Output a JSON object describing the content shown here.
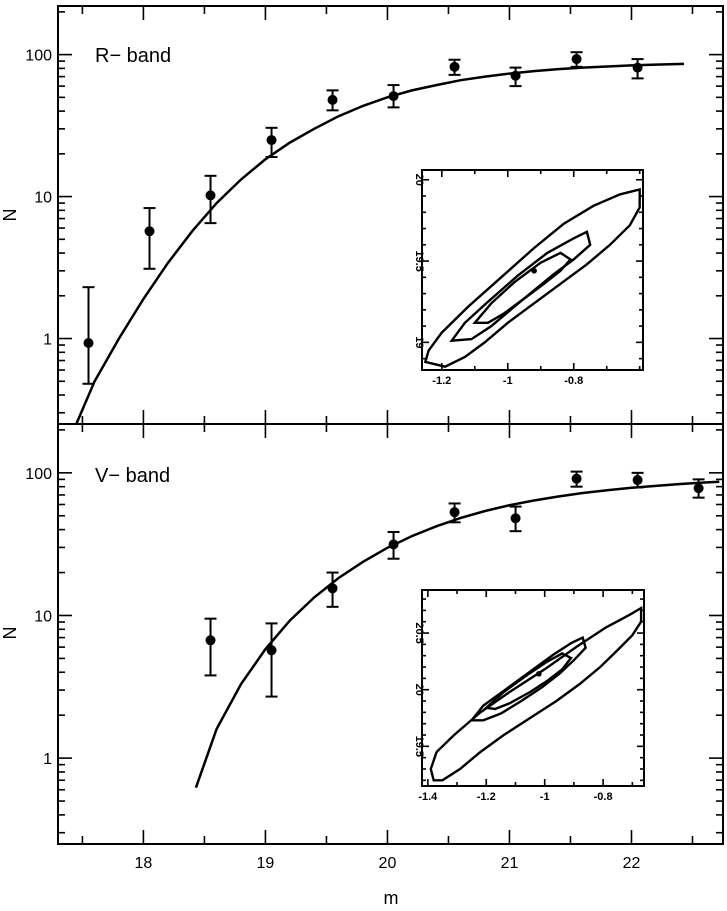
{
  "chart_data": [
    {
      "type": "scatter",
      "panel": "top",
      "annotation": "R− band",
      "xlabel": "m",
      "ylabel": "N",
      "xlim": [
        17.3,
        22.75
      ],
      "ylim": [
        0.25,
        220
      ],
      "yscale": "log",
      "yticks": [
        1,
        10,
        100
      ],
      "ytick_labels": [
        "1",
        "10",
        "100"
      ],
      "xticks": [
        18,
        19,
        20,
        21,
        22
      ],
      "xtick_labels": [
        "18",
        "19",
        "20",
        "21",
        "22"
      ],
      "points": [
        {
          "x": 17.55,
          "y": 0.93,
          "lo": 0.48,
          "hi": 2.3
        },
        {
          "x": 18.05,
          "y": 5.7,
          "lo": 3.1,
          "hi": 8.3
        },
        {
          "x": 18.55,
          "y": 10.2,
          "lo": 6.5,
          "hi": 14.0
        },
        {
          "x": 19.05,
          "y": 25.0,
          "lo": 19.0,
          "hi": 30.5
        },
        {
          "x": 19.55,
          "y": 48.0,
          "lo": 40.5,
          "hi": 56.0
        },
        {
          "x": 20.05,
          "y": 51.0,
          "lo": 42.5,
          "hi": 61.0
        },
        {
          "x": 20.55,
          "y": 82.0,
          "lo": 72.0,
          "hi": 92.0
        },
        {
          "x": 21.05,
          "y": 71.0,
          "lo": 60.0,
          "hi": 81.0
        },
        {
          "x": 21.55,
          "y": 93.0,
          "lo": 82.0,
          "hi": 104.0
        },
        {
          "x": 22.05,
          "y": 81.0,
          "lo": 68.0,
          "hi": 93.0
        }
      ],
      "fit_curve": {
        "x": [
          17.45,
          17.6,
          17.8,
          18.0,
          18.2,
          18.4,
          18.6,
          18.8,
          19.0,
          19.2,
          19.4,
          19.6,
          19.8,
          20.0,
          20.2,
          20.4,
          20.6,
          20.8,
          21.0,
          21.2,
          21.4,
          21.6,
          21.8,
          22.0,
          22.2,
          22.43
        ],
        "y": [
          0.25,
          0.5,
          1.0,
          1.9,
          3.4,
          5.7,
          9.0,
          13.2,
          18.3,
          24.0,
          30.0,
          36.8,
          43.5,
          50.0,
          56.0,
          61.0,
          66.0,
          70.0,
          73.5,
          76.5,
          79.0,
          81.0,
          82.5,
          84.0,
          85.0,
          86.0
        ]
      },
      "inset": {
        "xlim": [
          -1.26,
          -0.59
        ],
        "ylim": [
          18.83,
          20.06
        ],
        "xticks": [
          -1.2,
          -1,
          -0.8
        ],
        "xtick_labels": [
          "-1.2",
          "-1",
          "-0.8"
        ],
        "yticks": [
          19,
          19.5,
          20
        ],
        "ytick_labels": [
          "19",
          "19.5",
          "20"
        ],
        "best_fit": {
          "x": -0.92,
          "y": 19.44
        },
        "contours": [
          [
            [
              -1.25,
              18.88
            ],
            [
              -1.24,
              18.95
            ],
            [
              -1.2,
              19.06
            ],
            [
              -1.12,
              19.22
            ],
            [
              -1.02,
              19.4
            ],
            [
              -0.92,
              19.58
            ],
            [
              -0.83,
              19.73
            ],
            [
              -0.74,
              19.84
            ],
            [
              -0.66,
              19.91
            ],
            [
              -0.6,
              19.94
            ],
            [
              -0.6,
              19.83
            ],
            [
              -0.63,
              19.72
            ],
            [
              -0.69,
              19.6
            ],
            [
              -0.76,
              19.48
            ],
            [
              -0.84,
              19.36
            ],
            [
              -0.92,
              19.24
            ],
            [
              -1.0,
              19.12
            ],
            [
              -1.07,
              19.0
            ],
            [
              -1.13,
              18.91
            ],
            [
              -1.19,
              18.85
            ],
            [
              -1.25,
              18.88
            ]
          ],
          [
            [
              -1.17,
              19.01
            ],
            [
              -1.13,
              19.12
            ],
            [
              -1.06,
              19.25
            ],
            [
              -0.97,
              19.41
            ],
            [
              -0.88,
              19.55
            ],
            [
              -0.8,
              19.64
            ],
            [
              -0.76,
              19.68
            ],
            [
              -0.75,
              19.6
            ],
            [
              -0.8,
              19.51
            ],
            [
              -0.86,
              19.42
            ],
            [
              -0.92,
              19.32
            ],
            [
              -0.98,
              19.22
            ],
            [
              -1.05,
              19.1
            ],
            [
              -1.11,
              19.02
            ],
            [
              -1.17,
              19.01
            ]
          ],
          [
            [
              -1.1,
              19.12
            ],
            [
              -1.05,
              19.24
            ],
            [
              -0.98,
              19.37
            ],
            [
              -0.9,
              19.49
            ],
            [
              -0.84,
              19.55
            ],
            [
              -0.81,
              19.51
            ],
            [
              -0.84,
              19.44
            ],
            [
              -0.89,
              19.36
            ],
            [
              -0.95,
              19.27
            ],
            [
              -1.01,
              19.18
            ],
            [
              -1.06,
              19.12
            ],
            [
              -1.1,
              19.12
            ]
          ]
        ]
      }
    },
    {
      "type": "scatter",
      "panel": "bottom",
      "annotation": "V− band",
      "xlabel": "m",
      "ylabel": "N",
      "xlim": [
        17.3,
        22.75
      ],
      "ylim": [
        0.25,
        220
      ],
      "yscale": "log",
      "yticks": [
        1,
        10,
        100
      ],
      "ytick_labels": [
        "1",
        "10",
        "100"
      ],
      "xticks": [
        18,
        19,
        20,
        21,
        22
      ],
      "xtick_labels": [
        "18",
        "19",
        "20",
        "21",
        "22"
      ],
      "points": [
        {
          "x": 18.55,
          "y": 6.7,
          "lo": 3.8,
          "hi": 9.5
        },
        {
          "x": 19.05,
          "y": 5.7,
          "lo": 2.7,
          "hi": 8.8
        },
        {
          "x": 19.55,
          "y": 15.5,
          "lo": 11.5,
          "hi": 20.0
        },
        {
          "x": 20.05,
          "y": 31.5,
          "lo": 25.0,
          "hi": 38.5
        },
        {
          "x": 20.55,
          "y": 53.0,
          "lo": 45.0,
          "hi": 61.0
        },
        {
          "x": 21.05,
          "y": 48.0,
          "lo": 39.0,
          "hi": 58.0
        },
        {
          "x": 21.55,
          "y": 91.0,
          "lo": 80.0,
          "hi": 102.0
        },
        {
          "x": 22.05,
          "y": 89.0,
          "lo": 79.0,
          "hi": 100.0
        },
        {
          "x": 22.55,
          "y": 78.0,
          "lo": 67.0,
          "hi": 90.0
        }
      ],
      "fit_curve": {
        "x": [
          18.43,
          18.6,
          18.8,
          19.0,
          19.2,
          19.4,
          19.6,
          19.8,
          20.0,
          20.2,
          20.4,
          20.6,
          20.8,
          21.0,
          21.2,
          21.4,
          21.6,
          21.8,
          22.0,
          22.2,
          22.4,
          22.6,
          22.72
        ],
        "y": [
          0.62,
          1.6,
          3.3,
          5.8,
          9.2,
          13.4,
          18.3,
          23.8,
          29.8,
          36.0,
          42.2,
          48.3,
          54.0,
          59.3,
          64.0,
          68.3,
          72.2,
          75.5,
          78.5,
          81.0,
          83.5,
          85.5,
          86.5
        ]
      },
      "inset": {
        "xlim": [
          -1.42,
          -0.66
        ],
        "ylim": [
          19.15,
          20.88
        ],
        "xticks": [
          -1.4,
          -1.2,
          -1,
          -0.8
        ],
        "xtick_labels": [
          "-1.4",
          "-1.2",
          "-1",
          "-0.8"
        ],
        "yticks": [
          19.5,
          20,
          20.5
        ],
        "ytick_labels": [
          "19.5",
          "20",
          "20.5"
        ],
        "best_fit": {
          "x": -1.02,
          "y": 20.14
        },
        "contours": [
          [
            [
              -1.38,
              19.2
            ],
            [
              -1.39,
              19.3
            ],
            [
              -1.37,
              19.45
            ],
            [
              -1.31,
              19.6
            ],
            [
              -1.22,
              19.8
            ],
            [
              -1.12,
              19.98
            ],
            [
              -1.0,
              20.18
            ],
            [
              -0.89,
              20.38
            ],
            [
              -0.79,
              20.55
            ],
            [
              -0.71,
              20.66
            ],
            [
              -0.67,
              20.72
            ],
            [
              -0.67,
              20.6
            ],
            [
              -0.7,
              20.48
            ],
            [
              -0.75,
              20.35
            ],
            [
              -0.81,
              20.2
            ],
            [
              -0.88,
              20.05
            ],
            [
              -0.96,
              19.9
            ],
            [
              -1.05,
              19.75
            ],
            [
              -1.14,
              19.6
            ],
            [
              -1.22,
              19.45
            ],
            [
              -1.29,
              19.3
            ],
            [
              -1.35,
              19.2
            ],
            [
              -1.38,
              19.2
            ]
          ],
          [
            [
              -1.25,
              19.73
            ],
            [
              -1.21,
              19.86
            ],
            [
              -1.14,
              19.99
            ],
            [
              -1.05,
              20.16
            ],
            [
              -0.97,
              20.31
            ],
            [
              -0.91,
              20.41
            ],
            [
              -0.87,
              20.46
            ],
            [
              -0.86,
              20.37
            ],
            [
              -0.9,
              20.26
            ],
            [
              -0.95,
              20.14
            ],
            [
              -1.01,
              20.02
            ],
            [
              -1.08,
              19.9
            ],
            [
              -1.15,
              19.79
            ],
            [
              -1.21,
              19.73
            ],
            [
              -1.25,
              19.73
            ]
          ],
          [
            [
              -1.2,
              19.84
            ],
            [
              -1.14,
              19.98
            ],
            [
              -1.06,
              20.13
            ],
            [
              -0.99,
              20.25
            ],
            [
              -0.94,
              20.32
            ],
            [
              -0.91,
              20.28
            ],
            [
              -0.94,
              20.18
            ],
            [
              -0.99,
              20.08
            ],
            [
              -1.05,
              19.98
            ],
            [
              -1.12,
              19.88
            ],
            [
              -1.17,
              19.83
            ],
            [
              -1.2,
              19.84
            ]
          ]
        ]
      }
    }
  ]
}
